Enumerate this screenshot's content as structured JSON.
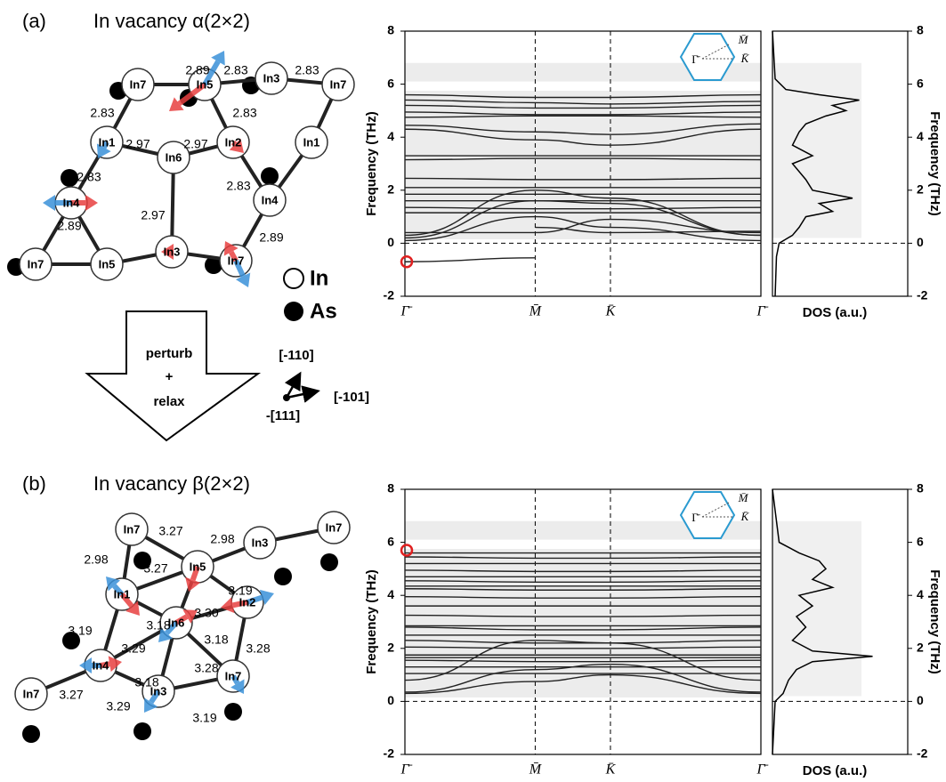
{
  "panels": [
    {
      "label": "(a)",
      "title": "In vacancy α(2×2)",
      "atoms": [
        "In7",
        "In5",
        "In3",
        "In7",
        "In1",
        "In2",
        "In1",
        "In6",
        "In4",
        "In4",
        "In7",
        "In5",
        "In3",
        "In7"
      ],
      "bonds": [
        "2.89",
        "2.83",
        "2.83",
        "2.83",
        "2.83",
        "2.97",
        "2.97",
        "2.83",
        "2.83",
        "2.97",
        "2.89",
        "2.89"
      ],
      "band_chart": {
        "type": "line",
        "ylabel": "Frequency (THz)",
        "categories": [
          "Γ̄",
          "M̄",
          "K̄",
          "Γ̄"
        ],
        "ylim": [
          -2,
          8
        ],
        "yticks": [
          -2,
          0,
          2,
          4,
          6,
          8
        ],
        "zero_line": 0,
        "color": "#222",
        "highlight": -0.7,
        "inset_labels": [
          "Γ̄",
          "M̄",
          "K̄"
        ],
        "series": [
          {
            "values": [
              5.6,
              5.5,
              5.5,
              5.6
            ]
          },
          {
            "values": [
              5.4,
              5.3,
              5.25,
              5.35
            ]
          },
          {
            "values": [
              5.2,
              5.1,
              5.1,
              5.2
            ]
          },
          {
            "values": [
              4.95,
              4.85,
              4.85,
              4.95
            ]
          },
          {
            "values": [
              4.75,
              4.8,
              4.8,
              4.75
            ]
          },
          {
            "values": [
              4.45,
              4.2,
              4.1,
              4.5
            ]
          },
          {
            "values": [
              4.3,
              3.9,
              3.7,
              4.3
            ]
          },
          {
            "values": [
              3.3,
              3.3,
              3.3,
              3.3
            ]
          },
          {
            "values": [
              3.15,
              3.2,
              3.2,
              3.15
            ]
          },
          {
            "values": [
              2.45,
              2.4,
              2.4,
              2.45
            ]
          },
          {
            "values": [
              2.1,
              2.1,
              2.1,
              2.1
            ]
          },
          {
            "values": [
              1.85,
              1.85,
              1.85,
              1.85
            ]
          },
          {
            "values": [
              1.6,
              1.6,
              1.6,
              1.6
            ]
          },
          {
            "values": [
              1.35,
              1.3,
              1.3,
              1.35
            ]
          },
          {
            "values": [
              1.15,
              1.15,
              1.15,
              1.15
            ]
          },
          {
            "values": [
              0.3,
              2.0,
              1.7,
              0.3
            ]
          },
          {
            "values": [
              0.2,
              1.6,
              1.5,
              0.3
            ]
          },
          {
            "values": [
              0.1,
              1.0,
              0.6,
              0.1
            ]
          },
          {
            "values": [
              0.4,
              0.4,
              0.9,
              0.4
            ]
          },
          {
            "values": [
              -0.7,
              -0.55,
              null,
              null
            ]
          },
          {
            "values": [
              null,
              0.6,
              0.4,
              0.45
            ]
          }
        ]
      },
      "dos_chart": {
        "type": "line",
        "xlabel": "DOS (a.u.)",
        "ylabel": "Frequency (THz)",
        "ylim": [
          -2,
          8
        ],
        "yticks": [
          -2,
          0,
          2,
          4,
          6,
          8
        ],
        "zero_line": 0,
        "freq": [
          -2,
          -0.5,
          0,
          0.3,
          0.6,
          1.0,
          1.2,
          1.5,
          1.7,
          2.0,
          2.4,
          3.0,
          3.3,
          3.7,
          4.2,
          4.5,
          4.8,
          5.0,
          5.2,
          5.4,
          5.6,
          5.8,
          6.2,
          8
        ],
        "values": [
          0.02,
          0.03,
          0.05,
          0.15,
          0.2,
          0.25,
          0.45,
          0.35,
          0.6,
          0.3,
          0.25,
          0.15,
          0.3,
          0.15,
          0.2,
          0.25,
          0.4,
          0.55,
          0.45,
          0.65,
          0.35,
          0.1,
          0.02,
          0
        ]
      }
    },
    {
      "label": "(b)",
      "title": "In vacancy β(2×2)",
      "atoms": [
        "In7",
        "In3",
        "In7",
        "In5",
        "In1",
        "In2",
        "In6",
        "In4",
        "In7",
        "In3",
        "In7"
      ],
      "bonds": [
        "3.27",
        "2.98",
        "2.98",
        "3.27",
        "3.19",
        "3.18",
        "3.30",
        "3.19",
        "3.29",
        "3.18",
        "3.28",
        "3.28",
        "3.18",
        "3.27",
        "3.29",
        "3.19"
      ],
      "band_chart": {
        "type": "line",
        "ylabel": "Frequency (THz)",
        "categories": [
          "Γ̄",
          "M̄",
          "K̄",
          "Γ̄"
        ],
        "ylim": [
          -2,
          8
        ],
        "yticks": [
          -2,
          0,
          2,
          4,
          6,
          8
        ],
        "zero_line": 0,
        "color": "#222",
        "highlight": 5.7,
        "inset_labels": [
          "Γ̄",
          "M̄",
          "K̄"
        ],
        "series": [
          {
            "values": [
              5.6,
              5.6,
              5.6,
              5.6
            ]
          },
          {
            "values": [
              5.45,
              5.4,
              5.4,
              5.45
            ]
          },
          {
            "values": [
              5.2,
              5.2,
              5.2,
              5.2
            ]
          },
          {
            "values": [
              4.95,
              4.9,
              4.9,
              4.95
            ]
          },
          {
            "values": [
              4.7,
              4.7,
              4.7,
              4.7
            ]
          },
          {
            "values": [
              4.55,
              4.5,
              4.5,
              4.55
            ]
          },
          {
            "values": [
              4.35,
              4.35,
              4.35,
              4.35
            ]
          },
          {
            "values": [
              4.25,
              4.2,
              4.2,
              4.25
            ]
          },
          {
            "values": [
              3.95,
              3.9,
              3.9,
              3.95
            ]
          },
          {
            "values": [
              3.6,
              3.6,
              3.6,
              3.6
            ]
          },
          {
            "values": [
              3.25,
              3.2,
              3.2,
              3.25
            ]
          },
          {
            "values": [
              2.85,
              2.85,
              2.85,
              2.85
            ]
          },
          {
            "values": [
              2.8,
              2.7,
              2.7,
              2.8
            ]
          },
          {
            "values": [
              2.5,
              2.5,
              2.5,
              2.5
            ]
          },
          {
            "values": [
              2.3,
              2.2,
              2.2,
              2.3
            ]
          },
          {
            "values": [
              2.05,
              2.0,
              2.0,
              2.05
            ]
          },
          {
            "values": [
              1.75,
              1.75,
              1.75,
              1.75
            ]
          },
          {
            "values": [
              1.65,
              1.65,
              1.65,
              1.65
            ]
          },
          {
            "values": [
              1.55,
              1.5,
              1.5,
              1.55
            ]
          },
          {
            "values": [
              1.3,
              1.3,
              1.3,
              1.3
            ]
          },
          {
            "values": [
              1.05,
              1.05,
              1.05,
              1.05
            ]
          },
          {
            "values": [
              0.3,
              0.75,
              1.0,
              0.3
            ]
          },
          {
            "values": [
              0.35,
              1.2,
              1.4,
              0.35
            ]
          },
          {
            "values": [
              0.8,
              2.3,
              2.2,
              0.8
            ]
          }
        ]
      },
      "dos_chart": {
        "type": "line",
        "xlabel": "DOS (a.u.)",
        "ylabel": "Frequency (THz)",
        "ylim": [
          -2,
          8
        ],
        "yticks": [
          -2,
          0,
          2,
          4,
          6,
          8
        ],
        "zero_line": 0,
        "freq": [
          -2,
          0,
          0.3,
          0.8,
          1.2,
          1.5,
          1.7,
          1.9,
          2.3,
          2.8,
          3.2,
          3.6,
          4.0,
          4.3,
          4.6,
          5.0,
          5.3,
          5.6,
          6.0,
          8
        ],
        "values": [
          0,
          0.02,
          0.08,
          0.12,
          0.18,
          0.3,
          0.75,
          0.3,
          0.15,
          0.25,
          0.18,
          0.3,
          0.2,
          0.45,
          0.3,
          0.4,
          0.35,
          0.2,
          0.05,
          0
        ]
      }
    }
  ],
  "legend": {
    "in": "In",
    "as": "As"
  },
  "transform": [
    "perturb",
    "+",
    "relax"
  ],
  "directions": [
    "[-110]",
    "[-101]",
    "-[111]"
  ]
}
